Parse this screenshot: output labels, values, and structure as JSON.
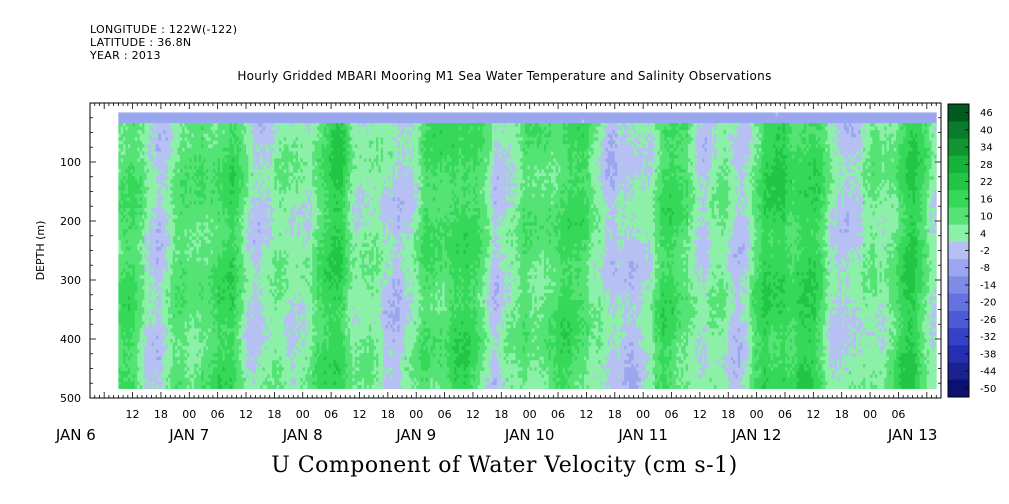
{
  "header": {
    "longitude": "LONGITUDE : 122W(-122)",
    "latitude": "LATITUDE : 36.8N",
    "year": "YEAR : 2013",
    "title": "Hourly Gridded MBARI Mooring M1 Sea Water Temperature and Salinity Observations"
  },
  "caption": "U Component of Water Velocity (cm s-1)",
  "chart_data": {
    "type": "heatmap",
    "title": "Hourly Gridded MBARI Mooring M1 Sea Water Temperature and Salinity Observations",
    "subtitle": "U Component of Water Velocity (cm s-1)",
    "ylabel": "DEPTH (m)",
    "y_reversed": true,
    "ylim": [
      0,
      500
    ],
    "y_ticks": [
      100,
      200,
      300,
      400,
      500
    ],
    "x_units": "hours since JAN 6 00",
    "xlim": [
      3,
      183
    ],
    "data_start_hour": 9,
    "data_end_hour": 182,
    "hour_ticks": [
      "12",
      "18",
      "00",
      "06",
      "12",
      "18",
      "00",
      "06",
      "12",
      "18",
      "00",
      "06",
      "12",
      "18",
      "00",
      "06",
      "12",
      "18",
      "00",
      "06",
      "12",
      "18",
      "00",
      "06",
      "12",
      "18",
      "00",
      "06"
    ],
    "day_labels": [
      "JAN 6",
      "JAN 7",
      "JAN 8",
      "JAN 9",
      "JAN 10",
      "JAN 11",
      "JAN 12",
      "JAN 13"
    ],
    "colorbar": {
      "levels": [
        46,
        40,
        34,
        28,
        22,
        16,
        10,
        4,
        -2,
        -8,
        -14,
        -20,
        -26,
        -32,
        -38,
        -44,
        -50
      ],
      "colors": [
        "#005a20",
        "#0a7a2d",
        "#129632",
        "#16b23a",
        "#22c545",
        "#36d85a",
        "#55e375",
        "#8cf0a8",
        "#b6c0f2",
        "#9aa6ee",
        "#7f8ce6",
        "#6672e0",
        "#4c5ad6",
        "#3542c8",
        "#2530b0",
        "#1a2290",
        "#0c1070"
      ]
    },
    "dominant_band": [
      -8,
      16
    ],
    "surface_layer_value": -14
  }
}
